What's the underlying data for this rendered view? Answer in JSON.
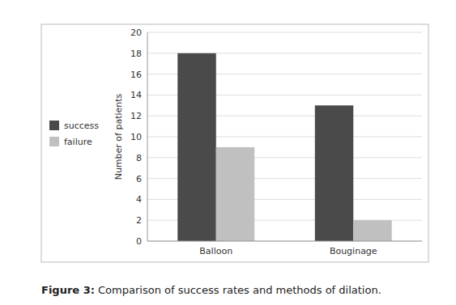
{
  "chart_data": {
    "type": "bar",
    "categories": [
      "Balloon",
      "Bouginage"
    ],
    "series": [
      {
        "name": "success",
        "color": "#4a4a4a",
        "values": [
          18,
          13
        ]
      },
      {
        "name": "failure",
        "color": "#c0c0c0",
        "values": [
          9,
          2
        ]
      }
    ],
    "ylabel": "Number of patients",
    "ylim": [
      0,
      20
    ],
    "yticks": [
      0,
      2,
      4,
      6,
      8,
      10,
      12,
      14,
      16,
      18,
      20
    ],
    "grid": true,
    "legend": "left",
    "annotations": [
      "Figure 3:",
      " Comparison of success rates and methods of dilation."
    ]
  }
}
